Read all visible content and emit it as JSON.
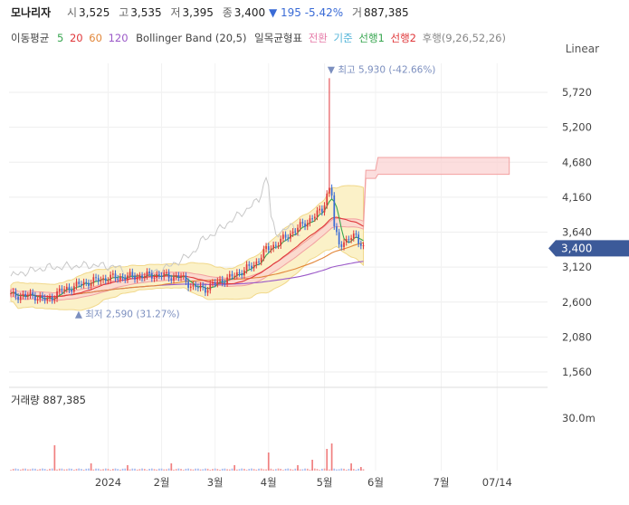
{
  "header": {
    "name": "모나리자",
    "open_label": "시",
    "open": "3,525",
    "high_label": "고",
    "high": "3,535",
    "low_label": "저",
    "low": "3,395",
    "close_label": "종",
    "close": "3,400",
    "change": "▼ 195 -5.42%",
    "volume_label": "거",
    "volume": "887,385"
  },
  "indicators": {
    "ma_label": "이동평균",
    "ma_periods": [
      "5",
      "20",
      "60",
      "120"
    ],
    "bollinger": "Bollinger Band (20,5)",
    "ichimoku_label": "일목균형표",
    "ichimoku_items": [
      "전환",
      "기준",
      "선행1",
      "선행2",
      "후행(9,26,52,26)"
    ]
  },
  "scale_mode": "Linear",
  "colors": {
    "up": "#e0373a",
    "down": "#3a6bd6",
    "ma5": "#38a650",
    "ma20": "#e0373a",
    "ma60": "#e2873a",
    "ma120": "#9b59c8",
    "bollinger_fill": "#fbf1c8",
    "price_tag": "#3c5a99"
  },
  "chart_data": {
    "type": "candlestick",
    "y_ticks": [
      "5,720",
      "5,200",
      "4,680",
      "4,160",
      "3,640",
      "3,120",
      "2,600",
      "2,080",
      "1,560"
    ],
    "ylim": [
      1400,
      6000
    ],
    "x_ticks": [
      "2024",
      "2월",
      "3월",
      "4월",
      "5월",
      "6월",
      "7월",
      "07/14"
    ],
    "current_price": "3,400",
    "high_annotation": "최고 5,930 (-42.66%)",
    "high_value": 5930,
    "low_annotation": "최저 2,590 (31.27%)",
    "low_value": 2590,
    "price_path": [
      [
        0,
        2700
      ],
      [
        10,
        2690
      ],
      [
        15,
        2620
      ],
      [
        20,
        2760
      ],
      [
        30,
        2880
      ],
      [
        40,
        2960
      ],
      [
        50,
        2980
      ],
      [
        60,
        3000
      ],
      [
        70,
        2970
      ],
      [
        75,
        2820
      ],
      [
        80,
        2800
      ],
      [
        85,
        2900
      ],
      [
        90,
        2960
      ],
      [
        95,
        3060
      ],
      [
        100,
        3150
      ],
      [
        105,
        3380
      ],
      [
        110,
        3480
      ],
      [
        115,
        3620
      ],
      [
        120,
        3750
      ],
      [
        125,
        3880
      ],
      [
        128,
        3980
      ],
      [
        130,
        4200
      ],
      [
        131,
        5930
      ],
      [
        132,
        4200
      ],
      [
        133,
        3700
      ],
      [
        135,
        3480
      ],
      [
        138,
        3500
      ],
      [
        142,
        3600
      ],
      [
        145,
        3400
      ]
    ],
    "volume": {
      "label": "거래량",
      "value": "887,385",
      "axis_tick": "30.0m",
      "spikes": [
        [
          18,
          14
        ],
        [
          33,
          4
        ],
        [
          48,
          3
        ],
        [
          66,
          4
        ],
        [
          92,
          3
        ],
        [
          106,
          10
        ],
        [
          118,
          3
        ],
        [
          124,
          6
        ],
        [
          130,
          12
        ],
        [
          132,
          15
        ],
        [
          140,
          4
        ],
        [
          144,
          2
        ]
      ]
    }
  }
}
